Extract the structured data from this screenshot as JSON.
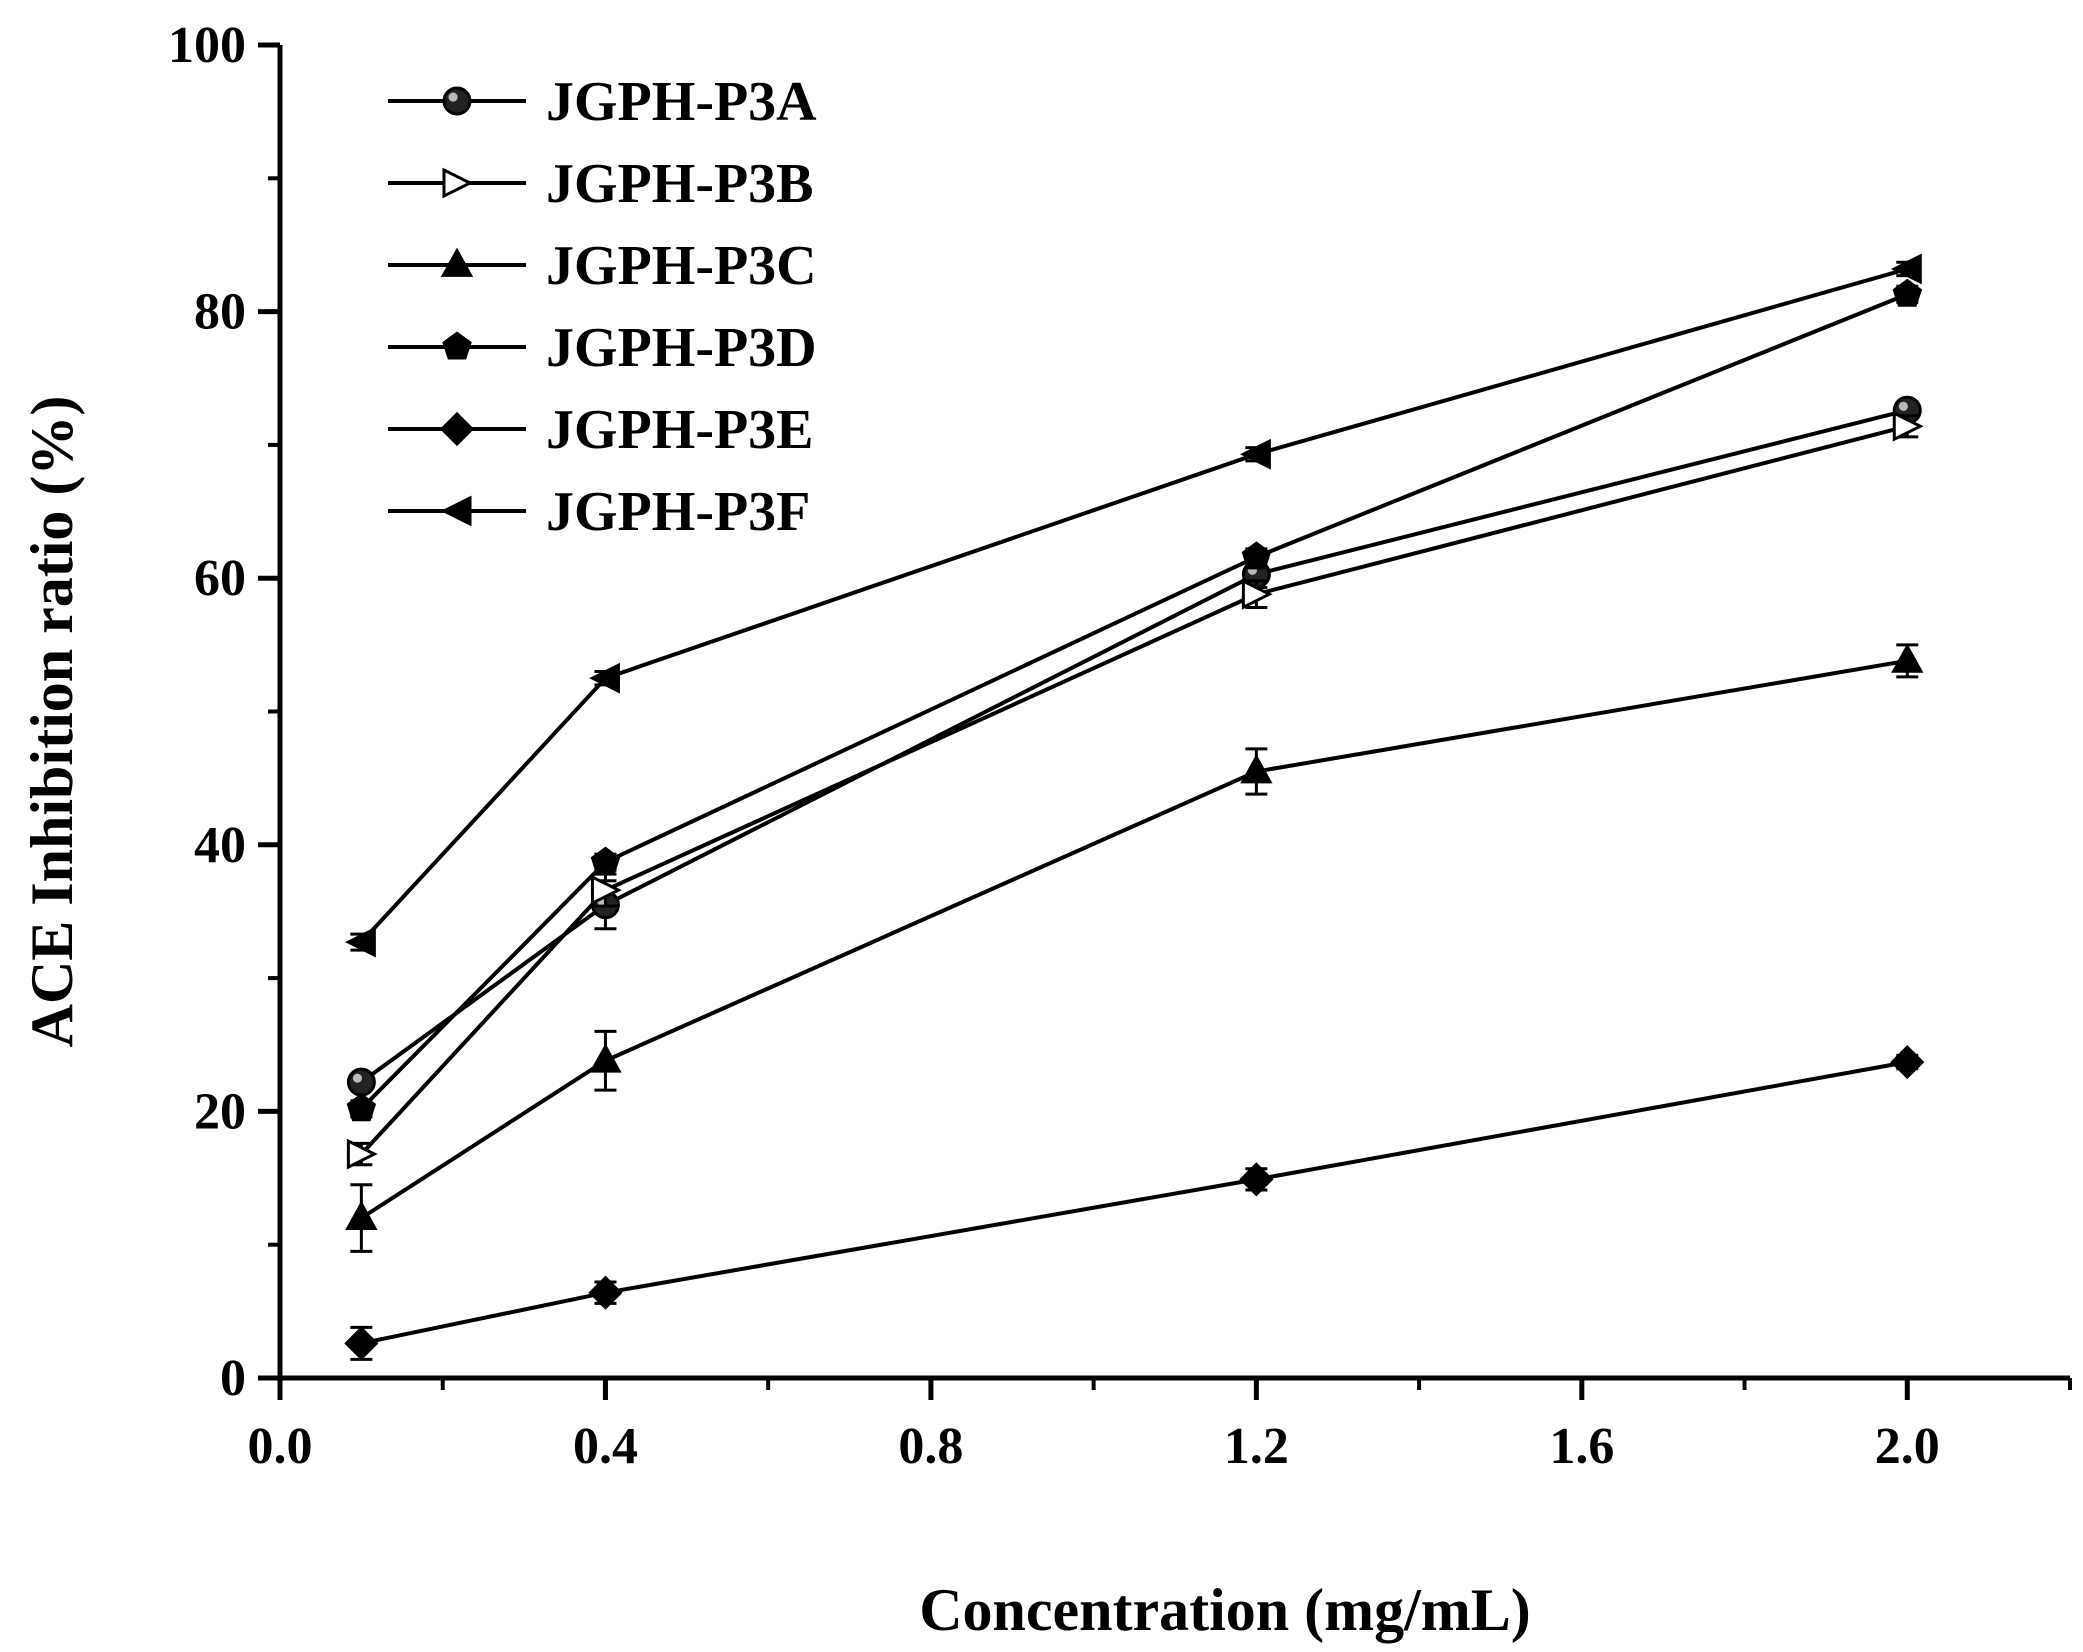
{
  "chart_data": {
    "type": "line",
    "title": "",
    "xlabel": "Concentration (mg/mL)",
    "ylabel": "ACE Inhibition ratio (%)",
    "xlim": [
      0.0,
      2.2
    ],
    "ylim": [
      0,
      100
    ],
    "x_ticks": [
      0.0,
      0.4,
      0.8,
      1.2,
      1.6,
      2.0
    ],
    "x_tick_labels": [
      "0.0",
      "0.4",
      "0.8",
      "1.2",
      "1.6",
      "2.0"
    ],
    "y_ticks": [
      0,
      20,
      40,
      60,
      80,
      100
    ],
    "y_tick_labels": [
      "0",
      "20",
      "40",
      "60",
      "80",
      "100"
    ],
    "grid": false,
    "legend_position": "top-left",
    "x": [
      0.1,
      0.4,
      1.2,
      2.0
    ],
    "series": [
      {
        "name": "JGPH-P3A",
        "marker": "circle",
        "values": [
          22.2,
          35.5,
          60.3,
          72.6
        ],
        "errors": [
          0.6,
          1.8,
          1.0,
          0.6
        ]
      },
      {
        "name": "JGPH-P3B",
        "marker": "triangle-right-open",
        "values": [
          16.8,
          36.6,
          58.8,
          71.4
        ],
        "errors": [
          0.8,
          1.2,
          1.0,
          0.8
        ]
      },
      {
        "name": "JGPH-P3C",
        "marker": "triangle-up",
        "values": [
          12.0,
          23.8,
          45.5,
          53.8
        ],
        "errors": [
          2.5,
          2.2,
          1.7,
          1.2
        ]
      },
      {
        "name": "JGPH-P3D",
        "marker": "pentagon",
        "values": [
          20.2,
          38.7,
          61.6,
          81.3
        ],
        "errors": [
          0.6,
          0.6,
          0.6,
          0.6
        ]
      },
      {
        "name": "JGPH-P3E",
        "marker": "diamond",
        "values": [
          2.6,
          6.4,
          14.9,
          23.7
        ],
        "errors": [
          1.2,
          0.8,
          0.8,
          0.5
        ]
      },
      {
        "name": "JGPH-P3F",
        "marker": "triangle-left",
        "values": [
          32.7,
          52.5,
          69.3,
          83.2
        ],
        "errors": [
          0.6,
          0.5,
          0.5,
          0.5
        ]
      }
    ]
  }
}
